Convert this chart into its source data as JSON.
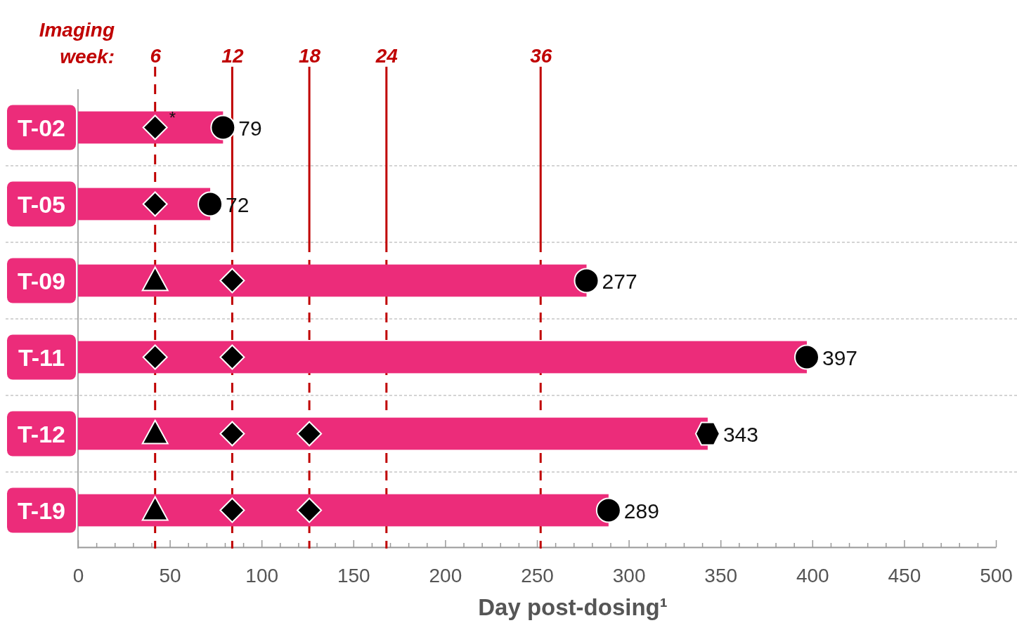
{
  "chart_data": {
    "type": "bar",
    "orientation": "horizontal",
    "categories": [
      "T-02",
      "T-05",
      "T-09",
      "T-11",
      "T-12",
      "T-19"
    ],
    "xlabel": "Day post-dosing¹",
    "xlim": [
      0,
      500
    ],
    "xticks": [
      0,
      {
        "value": 10,
        "label": null
      },
      {
        "value": 20,
        "label": null
      },
      {
        "value": 30,
        "label": null
      },
      {
        "value": 40,
        "label": null
      },
      50,
      {
        "value": 60,
        "label": null
      },
      {
        "value": 70,
        "label": null
      },
      {
        "value": 80,
        "label": null
      },
      {
        "value": 90,
        "label": null
      },
      100,
      {
        "value": 110,
        "label": null
      },
      {
        "value": 120,
        "label": null
      },
      {
        "value": 130,
        "label": null
      },
      {
        "value": 140,
        "label": null
      },
      150,
      {
        "value": 160,
        "label": null
      },
      {
        "value": 170,
        "label": null
      },
      {
        "value": 180,
        "label": null
      },
      {
        "value": 190,
        "label": null
      },
      200,
      {
        "value": 210,
        "label": null
      },
      {
        "value": 220,
        "label": null
      },
      {
        "value": 230,
        "label": null
      },
      {
        "value": 240,
        "label": null
      },
      250,
      {
        "value": 260,
        "label": null
      },
      {
        "value": 270,
        "label": null
      },
      {
        "value": 280,
        "label": null
      },
      {
        "value": 290,
        "label": null
      },
      300,
      {
        "value": 310,
        "label": null
      },
      {
        "value": 320,
        "label": null
      },
      {
        "value": 330,
        "label": null
      },
      {
        "value": 340,
        "label": null
      },
      350,
      {
        "value": 360,
        "label": null
      },
      {
        "value": 370,
        "label": null
      },
      {
        "value": 380,
        "label": null
      },
      {
        "value": 390,
        "label": null
      },
      400,
      {
        "value": 410,
        "label": null
      },
      {
        "value": 420,
        "label": null
      },
      {
        "value": 430,
        "label": null
      },
      {
        "value": 440,
        "label": null
      },
      450,
      {
        "value": 460,
        "label": null
      },
      {
        "value": 470,
        "label": null
      },
      {
        "value": 480,
        "label": null
      },
      {
        "value": 490,
        "label": null
      },
      500
    ],
    "x2label": "Imaging week:",
    "x2lim": [
      0,
      71.43
    ],
    "x2ticks": [
      6,
      12,
      18,
      24,
      36
    ],
    "grid": "y",
    "series": [
      {
        "color": "#ec2c7a",
        "values": [
          79,
          72,
          277,
          397,
          343,
          289
        ],
        "value_labels": [
          "79",
          "72",
          "277",
          "397",
          "343",
          "289"
        ]
      },
      {
        "type": "scatter",
        "marker": "diamond",
        "color": "#000000",
        "values": [
          42,
          42,
          null,
          42,
          null,
          null
        ]
      },
      {
        "type": "scatter",
        "marker": "triangle",
        "color": "#000000",
        "values": [
          null,
          null,
          42,
          null,
          42,
          42
        ]
      },
      {
        "type": "scatter",
        "marker": "diamond",
        "color": "#000000",
        "values": [
          null,
          null,
          84,
          84,
          84,
          84
        ]
      },
      {
        "type": "scatter",
        "marker": "diamond",
        "color": "#000000",
        "values": [
          null,
          null,
          null,
          null,
          126,
          126
        ]
      },
      {
        "type": "scatter",
        "marker": "circle",
        "color": "#000000",
        "values": [
          79,
          72,
          277,
          397,
          null,
          289
        ]
      },
      {
        "type": "scatter",
        "color": "#000000",
        "values": [
          null,
          null,
          null,
          null,
          343,
          null
        ]
      }
    ],
    "ref_lines": [
      {
        "axis": "x",
        "value": 42,
        "color": "#c00000"
      },
      {
        "axis": "x",
        "value": 84,
        "color": "#c00000"
      },
      {
        "axis": "x",
        "value": 126,
        "color": "#c00000"
      },
      {
        "axis": "x",
        "value": 168,
        "color": "#c00000"
      },
      {
        "axis": "x",
        "value": 252,
        "color": "#c00000"
      }
    ],
    "annotations": [
      {
        "text": "*",
        "x": 42,
        "y": "T-02"
      }
    ]
  }
}
